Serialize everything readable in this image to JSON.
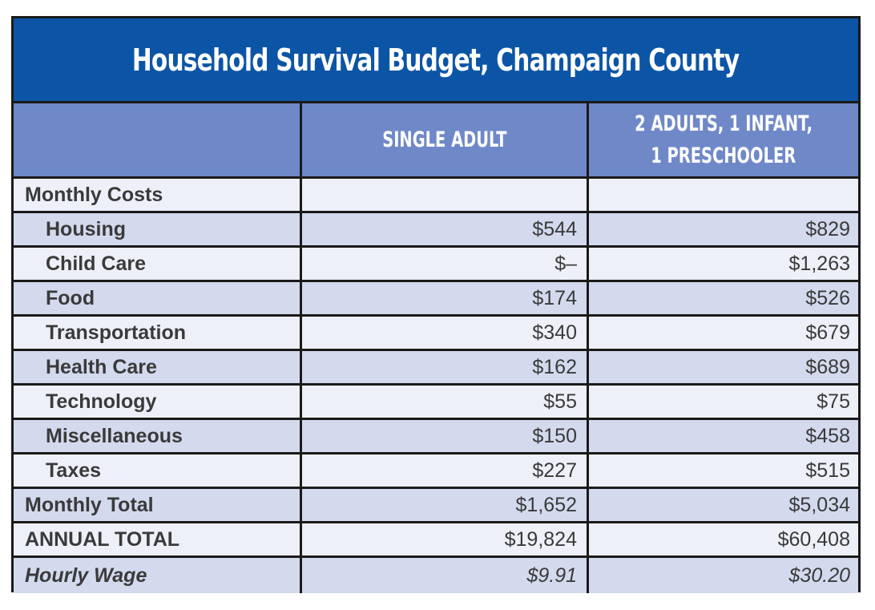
{
  "title": "Household Survival Budget, Champaign County",
  "columns": {
    "col1": "SINGLE ADULT",
    "col2_line1": "2 ADULTS, 1 INFANT,",
    "col2_line2": "1 PRESCHOOLER"
  },
  "rows": [
    {
      "label": "Monthly Costs",
      "single": "",
      "family": ""
    },
    {
      "label": "Housing",
      "single": "$544",
      "family": "$829"
    },
    {
      "label": "Child Care",
      "single": "$–",
      "family": "$1,263"
    },
    {
      "label": "Food",
      "single": "$174",
      "family": "$526"
    },
    {
      "label": "Transportation",
      "single": "$340",
      "family": "$679"
    },
    {
      "label": "Health Care",
      "single": "$162",
      "family": "$689"
    },
    {
      "label": "Technology",
      "single": "$55",
      "family": "$75"
    },
    {
      "label": "Miscellaneous",
      "single": "$150",
      "family": "$458"
    },
    {
      "label": "Taxes",
      "single": "$227",
      "family": "$515"
    },
    {
      "label": "Monthly Total",
      "single": "$1,652",
      "family": "$5,034"
    },
    {
      "label": "ANNUAL TOTAL",
      "single": "$19,824",
      "family": "$60,408"
    },
    {
      "label": "Hourly Wage",
      "single": "$9.91",
      "family": "$30.20"
    }
  ],
  "colors": {
    "title_bg": "#0c55a6",
    "header_bg": "#6f88c8",
    "row_light": "#eef0f9",
    "row_dark": "#d3daed"
  }
}
